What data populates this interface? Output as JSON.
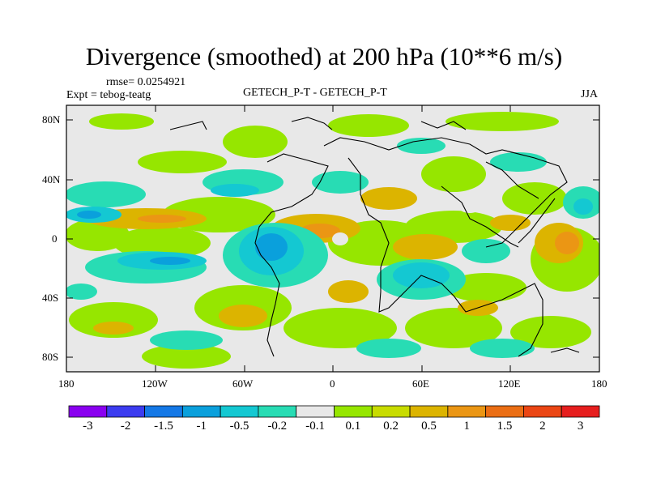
{
  "title": "Divergence (smoothed) at 200 hPa (10**6 m/s)",
  "rmse": "rmse= 0.0254921",
  "expt": "Expt = tebog-teatg",
  "center_label": "GETECH_P-T - GETECH_P-T",
  "season": "JJA",
  "y_ticks": [
    "80N",
    "40N",
    "0",
    "40S",
    "80S"
  ],
  "x_ticks": [
    "180",
    "120W",
    "60W",
    "0",
    "60E",
    "120E",
    "180"
  ],
  "colorbar": {
    "labels": [
      "-3",
      "-2",
      "-1.5",
      "-1",
      "-0.5",
      "-0.2",
      "-0.1",
      "0.1",
      "0.2",
      "0.5",
      "1",
      "1.5",
      "2",
      "3"
    ],
    "colors": [
      "#8a00f0",
      "#3c3cf0",
      "#1478e6",
      "#0aa0dc",
      "#14c8d2",
      "#28dcb4",
      "#e8e8e8",
      "#96e600",
      "#c8dc00",
      "#dcb400",
      "#eb9614",
      "#eb6e14",
      "#eb4614",
      "#e61e1e"
    ]
  }
}
